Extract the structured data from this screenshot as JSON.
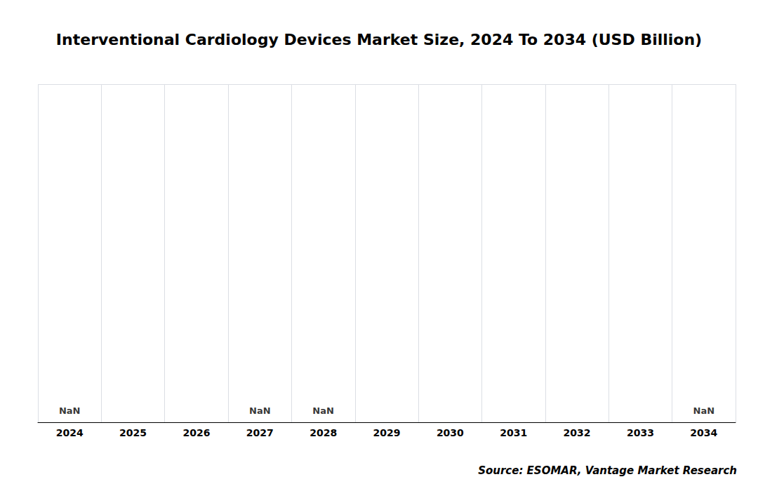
{
  "chart_data": {
    "type": "bar",
    "title": "Interventional Cardiology Devices Market Size, 2024 To 2034 (USD Billion)",
    "categories": [
      "2024",
      "2025",
      "2026",
      "2027",
      "2028",
      "2029",
      "2030",
      "2031",
      "2032",
      "2033",
      "2034"
    ],
    "values": [
      null,
      null,
      null,
      null,
      null,
      null,
      null,
      null,
      null,
      null,
      null
    ],
    "annotations": [
      {
        "x": "2024",
        "text": "NaN"
      },
      {
        "x": "2027",
        "text": "NaN"
      },
      {
        "x": "2028",
        "text": "NaN"
      },
      {
        "x": "2034",
        "text": "NaN"
      }
    ],
    "source": "Source: ESOMAR, Vantage Market Research",
    "ylim": [
      0,
      1
    ],
    "grid": true,
    "tick_labels": "x"
  }
}
